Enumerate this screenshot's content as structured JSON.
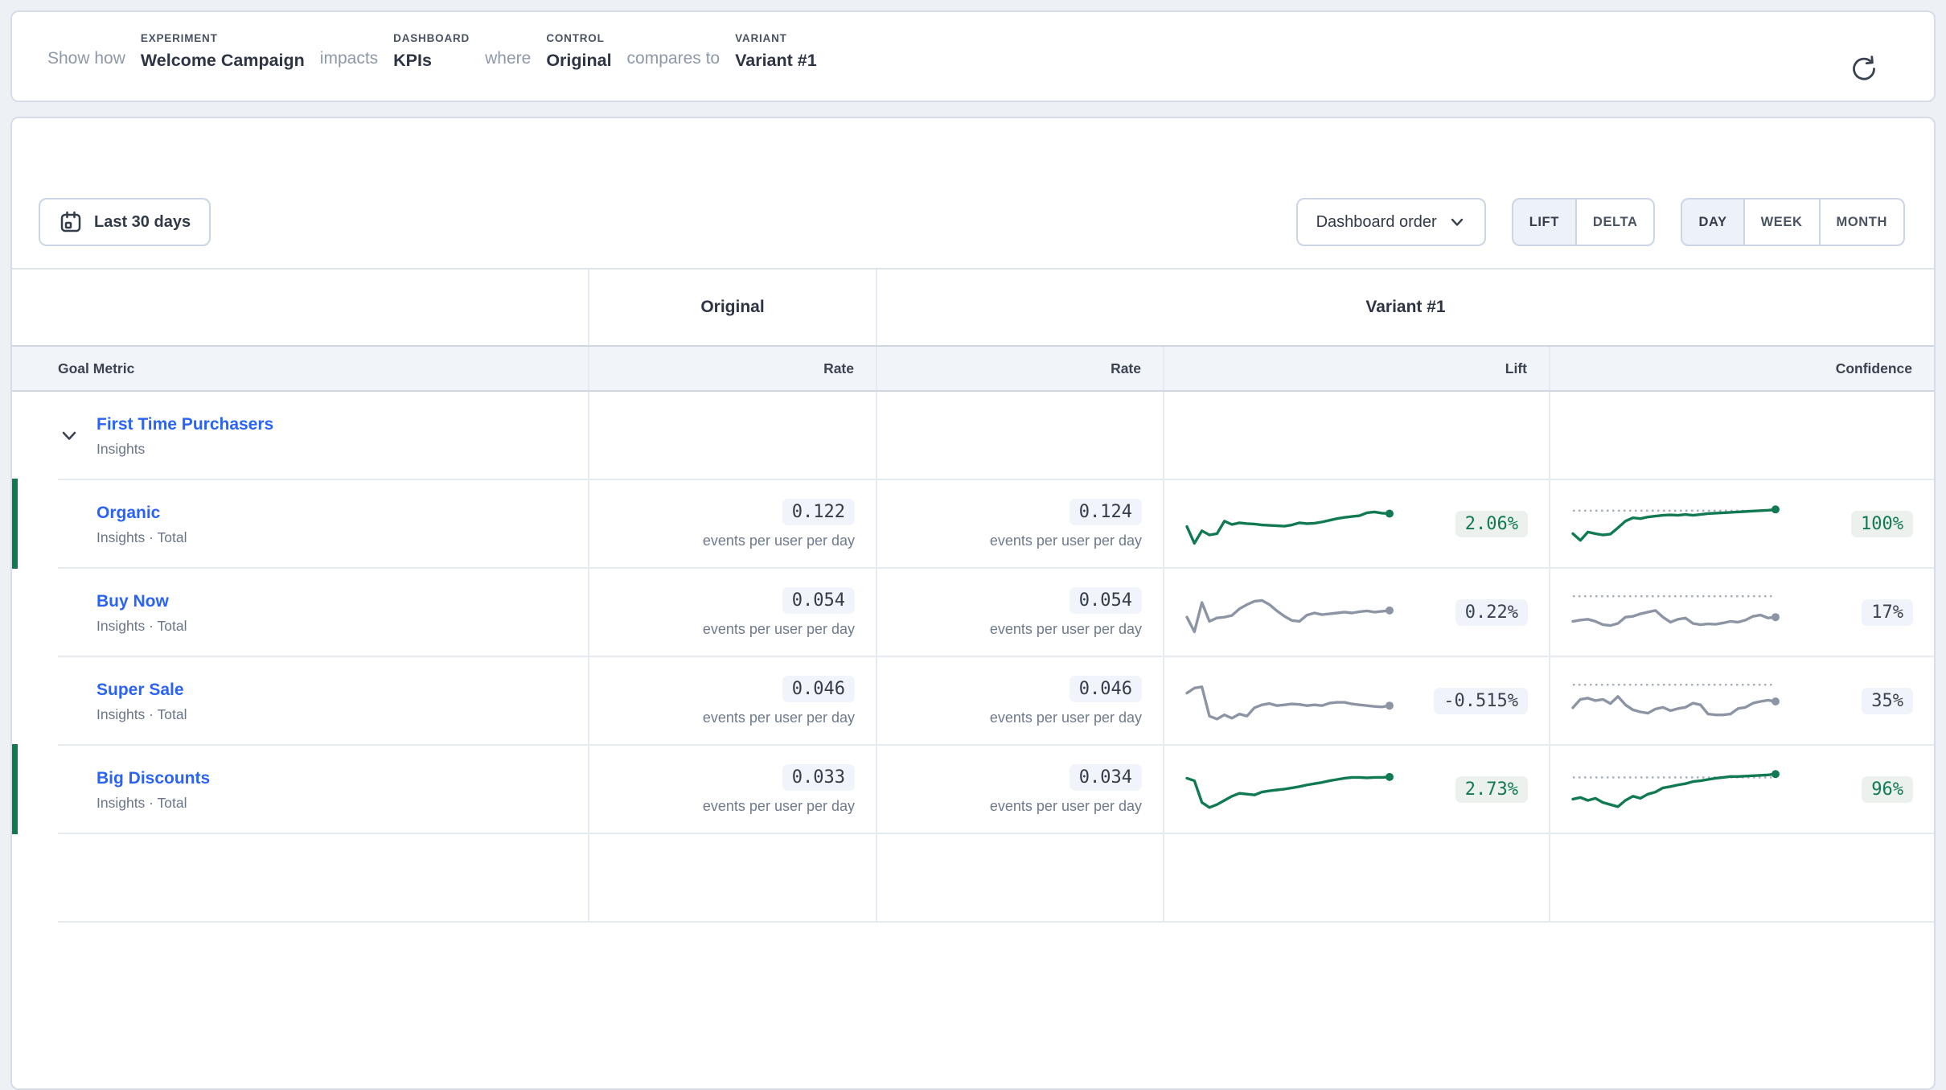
{
  "colors": {
    "positive": "#117a53",
    "neutral": "#8d95a5",
    "link": "#2a63f5",
    "significance_bar": "#0d7a4f",
    "threshold_line": "#a6adbb"
  },
  "query_bar": {
    "show_how": "Show how",
    "experiment": {
      "label": "EXPERIMENT",
      "value": "Welcome Campaign"
    },
    "impacts": "impacts",
    "dashboard": {
      "label": "DASHBOARD",
      "value": "KPIs"
    },
    "where": "where",
    "control": {
      "label": "CONTROL",
      "value": "Original"
    },
    "compares_to": "compares to",
    "variant": {
      "label": "VARIANT",
      "value": "Variant #1"
    }
  },
  "toolbar": {
    "date_range": "Last 30 days",
    "sort": "Dashboard order",
    "mode_toggle": {
      "options": [
        "LIFT",
        "DELTA"
      ],
      "selected": "LIFT"
    },
    "granularity_toggle": {
      "options": [
        "DAY",
        "WEEK",
        "MONTH"
      ],
      "selected": "DAY"
    }
  },
  "table": {
    "group_header": {
      "control": "Original",
      "variant": "Variant #1"
    },
    "columns": {
      "goal_metric": "Goal Metric",
      "control_rate": "Rate",
      "variant_rate": "Rate",
      "lift": "Lift",
      "confidence": "Confidence"
    },
    "parent_row": {
      "name": "First Time Purchasers",
      "subtitle": "Insights"
    },
    "rate_unit": "events per user per day",
    "rows": [
      {
        "name": "Organic",
        "subtitle": "Insights · Total",
        "control_rate": "0.122",
        "variant_rate": "0.124",
        "lift": "2.06%",
        "confidence": "100%",
        "significant": true,
        "lift_trend": [
          45,
          5,
          35,
          25,
          28,
          58,
          50,
          54,
          52,
          51,
          49,
          48,
          47,
          46,
          49,
          54,
          52,
          53,
          56,
          60,
          64,
          67,
          69,
          71,
          78,
          80,
          77,
          76
        ],
        "confidence_trend": [
          28,
          12,
          32,
          28,
          25,
          27,
          42,
          58,
          66,
          64,
          68,
          70,
          72,
          73,
          72,
          74,
          72,
          74,
          76,
          77,
          78,
          79,
          80,
          81,
          82,
          83,
          84,
          86
        ],
        "confidence_threshold": 83
      },
      {
        "name": "Buy Now",
        "subtitle": "Insights · Total",
        "control_rate": "0.054",
        "variant_rate": "0.054",
        "lift": "0.22%",
        "confidence": "17%",
        "significant": false,
        "lift_trend": [
          40,
          5,
          75,
          30,
          38,
          40,
          44,
          60,
          70,
          78,
          80,
          70,
          55,
          42,
          32,
          30,
          45,
          50,
          46,
          48,
          50,
          52,
          50,
          53,
          55,
          52,
          54,
          56
        ],
        "confidence_trend": [
          30,
          33,
          35,
          30,
          22,
          20,
          25,
          40,
          42,
          48,
          52,
          56,
          40,
          28,
          35,
          38,
          25,
          22,
          24,
          23,
          26,
          30,
          28,
          33,
          42,
          45,
          38,
          40
        ],
        "confidence_threshold": 90
      },
      {
        "name": "Super Sale",
        "subtitle": "Insights · Total",
        "control_rate": "0.046",
        "variant_rate": "0.046",
        "lift": "-0.515%",
        "confidence": "35%",
        "significant": false,
        "lift_trend": [
          70,
          82,
          85,
          15,
          8,
          18,
          10,
          20,
          15,
          35,
          42,
          45,
          40,
          42,
          44,
          43,
          40,
          42,
          40,
          46,
          48,
          48,
          44,
          42,
          40,
          38,
          37,
          40
        ],
        "confidence_trend": [
          35,
          55,
          58,
          52,
          55,
          45,
          62,
          42,
          30,
          25,
          22,
          32,
          36,
          28,
          33,
          36,
          46,
          42,
          20,
          18,
          18,
          20,
          33,
          36,
          46,
          50,
          53,
          50
        ],
        "confidence_threshold": 90
      },
      {
        "name": "Big Discounts",
        "subtitle": "Insights · Total",
        "control_rate": "0.033",
        "variant_rate": "0.034",
        "lift": "2.73%",
        "confidence": "96%",
        "significant": true,
        "lift_trend": [
          78,
          72,
          20,
          8,
          15,
          25,
          35,
          42,
          40,
          38,
          45,
          48,
          50,
          52,
          55,
          58,
          62,
          65,
          68,
          72,
          75,
          78,
          80,
          80,
          79,
          80,
          80,
          81
        ],
        "confidence_trend": [
          28,
          32,
          25,
          30,
          20,
          15,
          10,
          25,
          35,
          30,
          40,
          45,
          55,
          58,
          62,
          65,
          70,
          72,
          75,
          78,
          80,
          82,
          82,
          83,
          84,
          85,
          86,
          88
        ],
        "confidence_threshold": 80
      }
    ]
  }
}
